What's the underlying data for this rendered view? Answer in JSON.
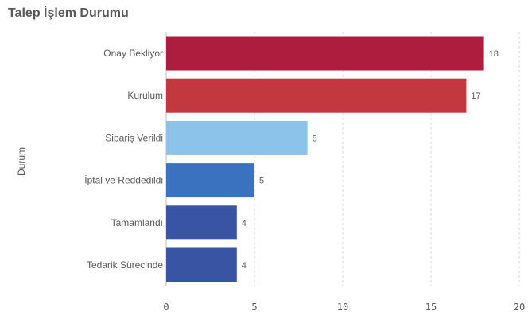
{
  "chart_data": {
    "type": "bar",
    "orientation": "horizontal",
    "title": "Talep İşlem Durumu",
    "ylabel": "Durum",
    "xlabel": "",
    "categories": [
      "Onay Bekliyor",
      "Kurulum",
      "Sipariş Verildi",
      "İptal ve Reddedildi",
      "Tamamlandı",
      "Tedarik Sürecinde"
    ],
    "values": [
      18,
      17,
      8,
      5,
      4,
      4
    ],
    "colors": [
      "#ae1c3e",
      "#c3373f",
      "#8cc3ea",
      "#3a72c0",
      "#3a54a4",
      "#3a54a4"
    ],
    "xlim": [
      0,
      20
    ],
    "xticks": [
      "0",
      "5",
      "10",
      "15",
      "20"
    ],
    "grid": true,
    "legend": "none"
  }
}
